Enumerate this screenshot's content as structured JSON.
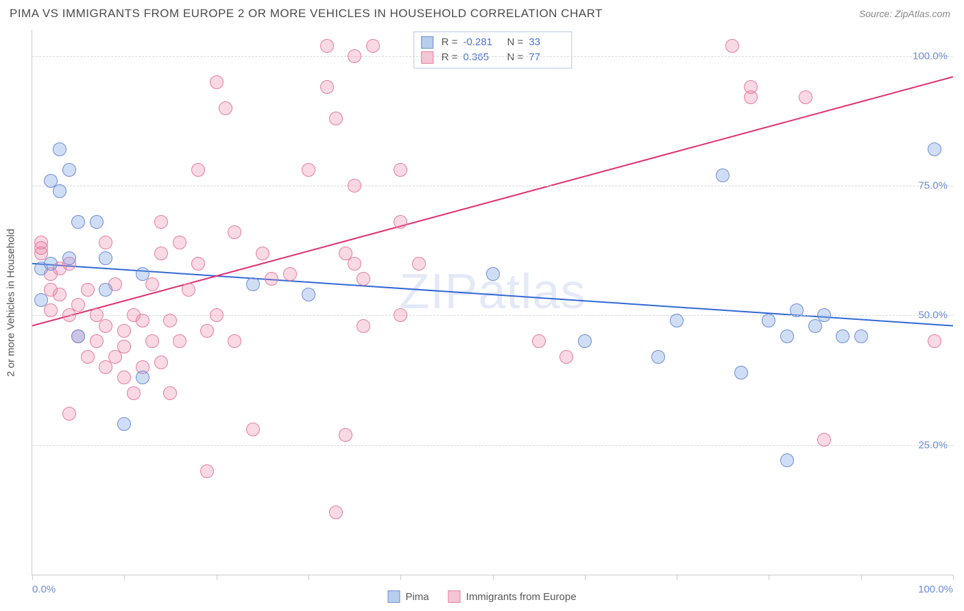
{
  "title": "PIMA VS IMMIGRANTS FROM EUROPE 2 OR MORE VEHICLES IN HOUSEHOLD CORRELATION CHART",
  "source": "Source: ZipAtlas.com",
  "ylabel": "2 or more Vehicles in Household",
  "watermark": "ZIPatlas",
  "xlim": [
    0,
    100
  ],
  "ylim": [
    0,
    105
  ],
  "x_ticks": [
    0,
    10,
    20,
    30,
    40,
    50,
    60,
    70,
    80,
    90,
    100
  ],
  "x_tick_labels": {
    "0": "0.0%",
    "100": "100.0%"
  },
  "y_gridlines": [
    25,
    50,
    75,
    100
  ],
  "y_tick_labels": [
    "25.0%",
    "50.0%",
    "75.0%",
    "100.0%"
  ],
  "background_color": "#ffffff",
  "grid_color": "#d8d8d8",
  "axis_color": "#cccccc",
  "axis_label_color": "#6b8bd6",
  "series": {
    "pima": {
      "label": "Pima",
      "color_fill": "rgba(120,160,225,0.35)",
      "color_stroke": "#6b8bd6",
      "swatch_fill": "#b8ceed",
      "swatch_stroke": "#6b8bd6",
      "R": "-0.281",
      "N": "33",
      "trend": {
        "x1": 0,
        "y1": 60,
        "x2": 100,
        "y2": 48,
        "color": "#2f68d6",
        "width": 2
      },
      "points": [
        [
          1,
          53
        ],
        [
          1,
          59
        ],
        [
          2,
          76
        ],
        [
          2,
          60
        ],
        [
          3,
          74
        ],
        [
          3,
          82
        ],
        [
          4,
          78
        ],
        [
          4,
          61
        ],
        [
          5,
          68
        ],
        [
          5,
          46
        ],
        [
          7,
          68
        ],
        [
          8,
          55
        ],
        [
          8,
          61
        ],
        [
          10,
          29
        ],
        [
          12,
          38
        ],
        [
          12,
          58
        ],
        [
          24,
          56
        ],
        [
          30,
          54
        ],
        [
          50,
          58
        ],
        [
          60,
          45
        ],
        [
          68,
          42
        ],
        [
          70,
          49
        ],
        [
          75,
          77
        ],
        [
          77,
          39
        ],
        [
          80,
          49
        ],
        [
          82,
          46
        ],
        [
          83,
          51
        ],
        [
          85,
          48
        ],
        [
          86,
          50
        ],
        [
          88,
          46
        ],
        [
          90,
          46
        ],
        [
          82,
          22
        ],
        [
          98,
          82
        ]
      ]
    },
    "europe": {
      "label": "Immigrants from Europe",
      "color_fill": "rgba(235,130,165,0.30)",
      "color_stroke": "#e57ba1",
      "swatch_fill": "#f5c5d5",
      "swatch_stroke": "#e57ba1",
      "R": "0.365",
      "N": "77",
      "trend": {
        "x1": 0,
        "y1": 48,
        "x2": 100,
        "y2": 96,
        "color": "#e02f72",
        "width": 2
      },
      "points": [
        [
          1,
          63
        ],
        [
          1,
          64
        ],
        [
          1,
          62
        ],
        [
          2,
          55
        ],
        [
          2,
          58
        ],
        [
          2,
          51
        ],
        [
          3,
          59
        ],
        [
          3,
          54
        ],
        [
          4,
          50
        ],
        [
          4,
          60
        ],
        [
          4,
          31
        ],
        [
          5,
          52
        ],
        [
          5,
          46
        ],
        [
          6,
          42
        ],
        [
          6,
          55
        ],
        [
          7,
          50
        ],
        [
          7,
          45
        ],
        [
          8,
          48
        ],
        [
          8,
          64
        ],
        [
          8,
          40
        ],
        [
          9,
          42
        ],
        [
          9,
          56
        ],
        [
          10,
          44
        ],
        [
          10,
          38
        ],
        [
          10,
          47
        ],
        [
          11,
          50
        ],
        [
          11,
          35
        ],
        [
          12,
          40
        ],
        [
          12,
          49
        ],
        [
          13,
          56
        ],
        [
          13,
          45
        ],
        [
          14,
          62
        ],
        [
          14,
          68
        ],
        [
          14,
          41
        ],
        [
          15,
          49
        ],
        [
          15,
          35
        ],
        [
          16,
          64
        ],
        [
          16,
          45
        ],
        [
          17,
          55
        ],
        [
          18,
          78
        ],
        [
          18,
          60
        ],
        [
          19,
          47
        ],
        [
          19,
          20
        ],
        [
          20,
          50
        ],
        [
          20,
          95
        ],
        [
          21,
          90
        ],
        [
          22,
          66
        ],
        [
          22,
          45
        ],
        [
          24,
          28
        ],
        [
          25,
          62
        ],
        [
          26,
          57
        ],
        [
          28,
          58
        ],
        [
          30,
          78
        ],
        [
          32,
          102
        ],
        [
          32,
          94
        ],
        [
          33,
          88
        ],
        [
          33,
          12
        ],
        [
          34,
          27
        ],
        [
          34,
          62
        ],
        [
          35,
          60
        ],
        [
          35,
          100
        ],
        [
          36,
          48
        ],
        [
          36,
          57
        ],
        [
          37,
          102
        ],
        [
          40,
          68
        ],
        [
          40,
          78
        ],
        [
          42,
          60
        ],
        [
          55,
          45
        ],
        [
          58,
          42
        ],
        [
          76,
          102
        ],
        [
          78,
          94
        ],
        [
          78,
          92
        ],
        [
          84,
          92
        ],
        [
          86,
          26
        ],
        [
          98,
          45
        ],
        [
          35,
          75
        ],
        [
          40,
          50
        ]
      ]
    }
  },
  "stats_labels": {
    "R": "R =",
    "N": "N ="
  },
  "marker_radius": 10
}
